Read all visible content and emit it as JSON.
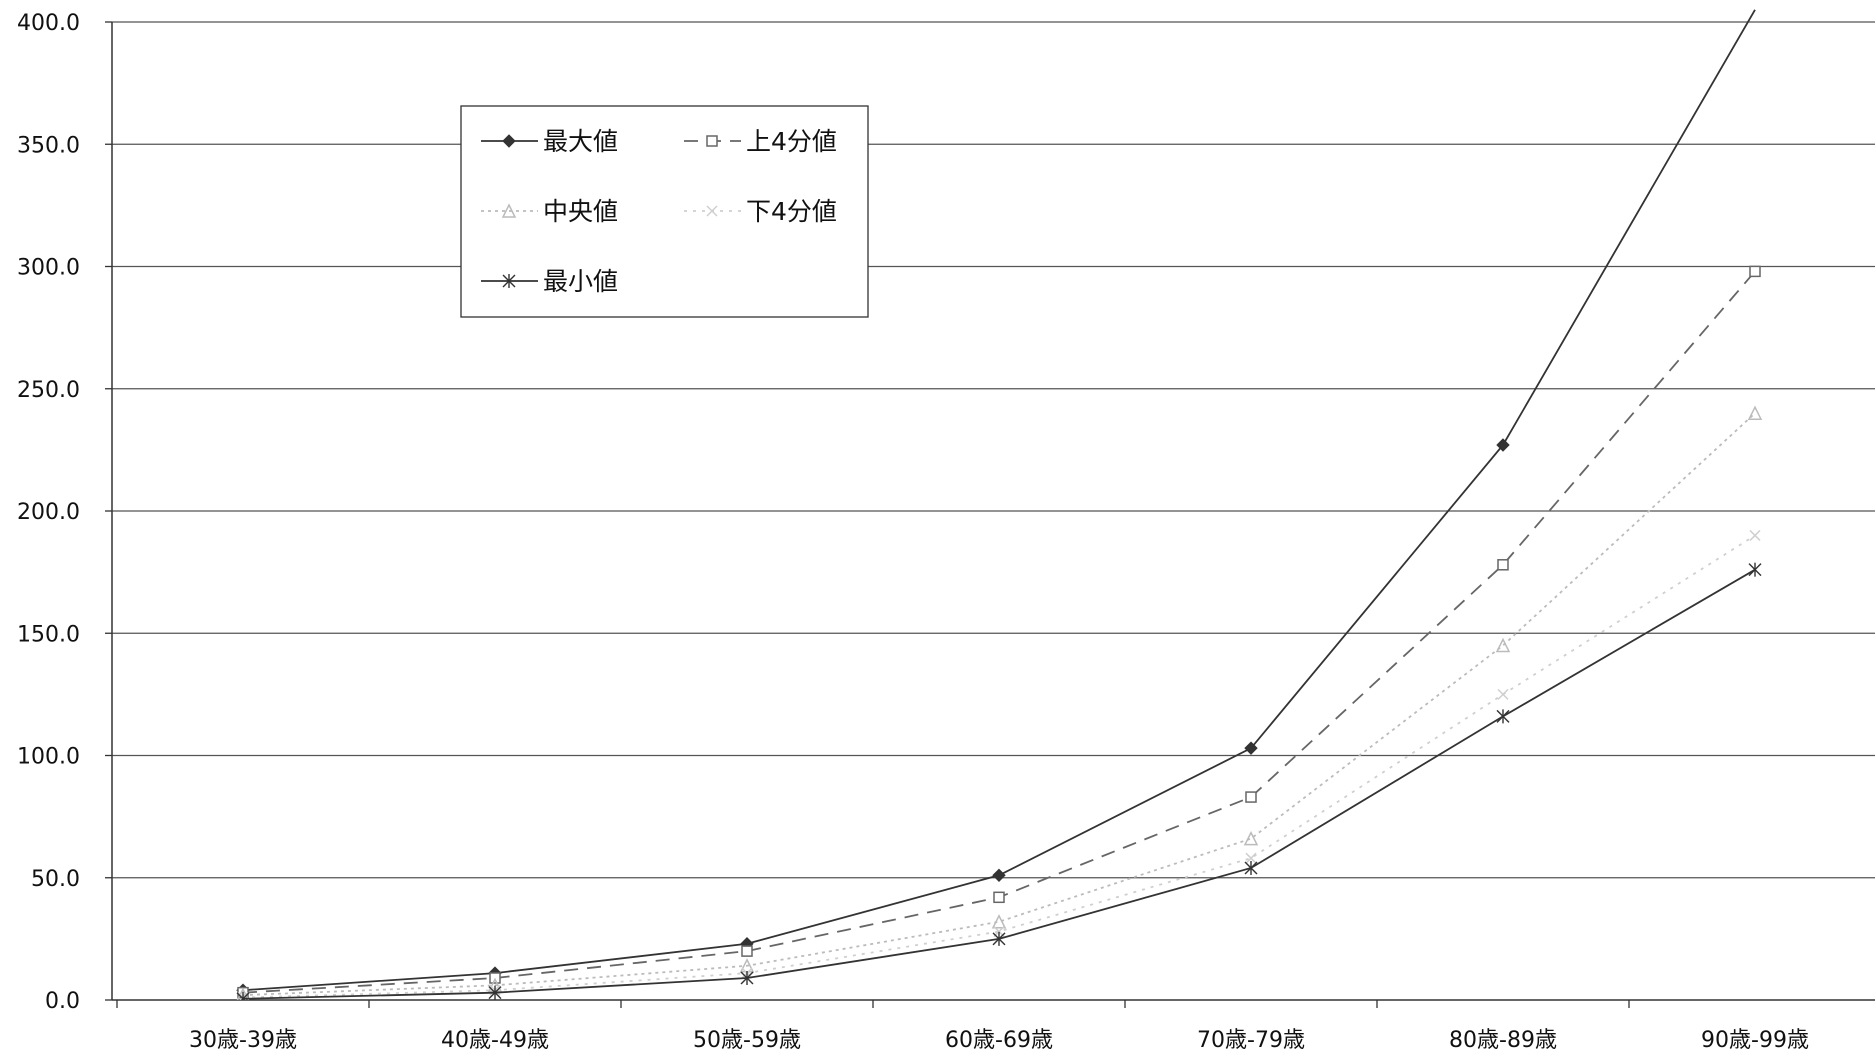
{
  "chart_data": {
    "type": "line",
    "categories": [
      "30歳-39歳",
      "40歳-49歳",
      "50歳-59歳",
      "60歳-69歳",
      "70歳-79歳",
      "80歳-89歳",
      "90歳-99歳"
    ],
    "ylim": [
      0,
      400
    ],
    "yticks": [
      "0.0",
      "50.0",
      "100.0",
      "150.0",
      "200.0",
      "250.0",
      "300.0",
      "350.0",
      "400.0"
    ],
    "grid": true,
    "legend_position": "top-left",
    "series": [
      {
        "name": "最大値",
        "values": [
          4,
          11,
          23,
          51,
          103,
          227,
          405
        ],
        "color": "#333333",
        "dash": "none",
        "marker": "diamond",
        "legend_text": "最大値"
      },
      {
        "name": "上4分値",
        "values": [
          3,
          9,
          20,
          42,
          83,
          178,
          298
        ],
        "color": "#666666",
        "dash": "14,9",
        "marker": "square",
        "legend_text": "上4分値"
      },
      {
        "name": "中央値",
        "values": [
          2,
          6,
          14,
          32,
          66,
          145,
          240
        ],
        "color": "#bbbbbb",
        "dash": "3,4",
        "marker": "triangle",
        "legend_text": "中央値"
      },
      {
        "name": "下4分値",
        "values": [
          1,
          4,
          11,
          28,
          58,
          125,
          190
        ],
        "color": "#cfcfcf",
        "dash": "3,6",
        "marker": "x",
        "legend_text": "下4分値"
      },
      {
        "name": "最小値",
        "values": [
          0.5,
          3,
          9,
          25,
          54,
          116,
          176
        ],
        "color": "#333333",
        "dash": "none",
        "marker": "star",
        "legend_text": "最小値"
      }
    ]
  }
}
